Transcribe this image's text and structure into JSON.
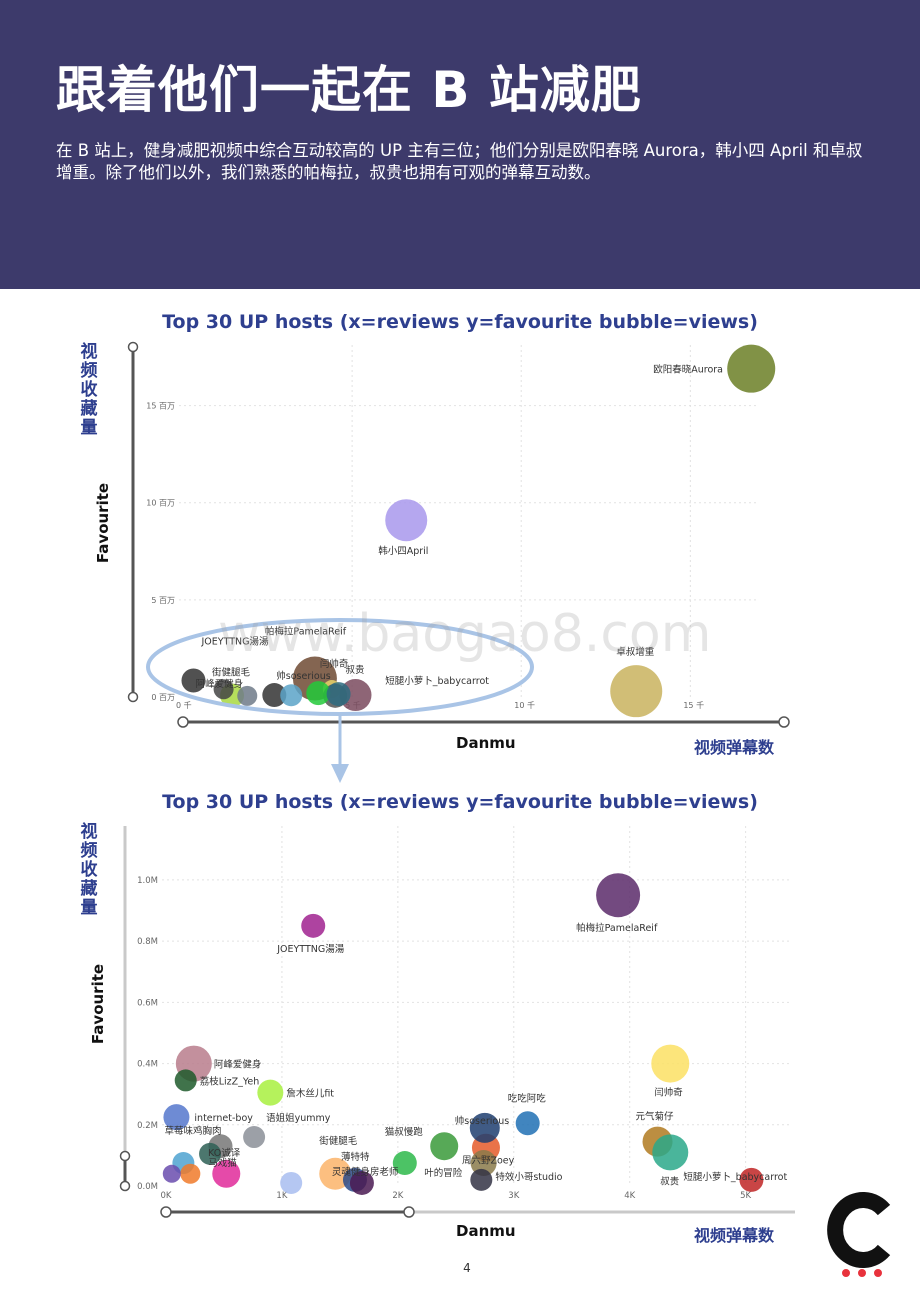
{
  "header": {
    "title": "跟着他们一起在 B 站减肥",
    "intro": "在 B 站上，健身减肥视频中综合互动较高的 UP 主有三位；他们分别是欧阳春晓 Aurora，韩小四 April 和卓叔增重。除了他们以外，我们熟悉的帕梅拉，叔贵也拥有可观的弹幕互动数。"
  },
  "watermark": "www.baogao8.com",
  "page_number": "4",
  "colors": {
    "header_bg": "#3d3a6b",
    "title_blue": "#2e3f8f",
    "callout": "#a9c4e6",
    "logo_dots": "#e8323c"
  },
  "chart_data": [
    {
      "type": "scatter",
      "title": "Top 30 UP hosts (x=reviews y=favourite bubble=views)",
      "xlabel": "Danmu",
      "xlabel_cn": "视频弹幕数",
      "ylabel": "Favourite",
      "ylabel_cn": "视频收藏量",
      "xlim": [
        0,
        17000
      ],
      "ylim": [
        0,
        17500000
      ],
      "xticks": [
        {
          "v": 0,
          "label": "0 千"
        },
        {
          "v": 5000,
          "label": "5 千"
        },
        {
          "v": 10000,
          "label": "10 千"
        },
        {
          "v": 15000,
          "label": "15 千"
        }
      ],
      "yticks": [
        {
          "v": 0,
          "label": "0 百万"
        },
        {
          "v": 5000000,
          "label": "5 百万"
        },
        {
          "v": 10000000,
          "label": "10 百万"
        },
        {
          "v": 15000000,
          "label": "15 百万"
        }
      ],
      "points": [
        {
          "name": "欧阳春晓Aurora",
          "x": 16800,
          "y": 16900000,
          "r": 24,
          "color": "#6b7f26",
          "lx": -98,
          "ly": 4
        },
        {
          "name": "韩小四April",
          "x": 6600,
          "y": 9100000,
          "r": 21,
          "color": "#a898ec",
          "lx": -28,
          "ly": 34
        },
        {
          "name": "卓叔增重",
          "x": 13400,
          "y": 300000,
          "r": 26,
          "color": "#c9b35e",
          "lx": -20,
          "ly": -36
        },
        {
          "name": "帕梅拉PamelaReif",
          "x": 3900,
          "y": 950000,
          "r": 22,
          "color": "#6e4a33",
          "lx": -50,
          "ly": -44
        },
        {
          "name": "闫帅奇",
          "x": 4400,
          "y": 410000,
          "r": 9,
          "color": "#e6d26a",
          "lx": -12,
          "ly": -22
        },
        {
          "name": "叔贵",
          "x": 5100,
          "y": 100000,
          "r": 16,
          "color": "#7a4a5e",
          "lx": -10,
          "ly": -22
        },
        {
          "name": "短腿小萝卜_babycarrot",
          "x": 4500,
          "y": 60000,
          "r": 12,
          "color": "#555555",
          "lx": 50,
          "ly": -12
        },
        {
          "name": "帅soserious",
          "x": 4000,
          "y": 200000,
          "r": 12,
          "color": "#22c93a",
          "lx": -42,
          "ly": -14
        },
        {
          "name": "JOEYTTNG湯湯",
          "x": 310,
          "y": 850000,
          "r": 12,
          "color": "#333333",
          "lx": 8,
          "ly": -36
        },
        {
          "name": "街健腿毛",
          "x": 1450,
          "y": 80000,
          "r": 12,
          "color": "#a8d840",
          "lx": -20,
          "ly": -20
        },
        {
          "name": "阿峰爱健身",
          "x": 1200,
          "y": 400000,
          "r": 10,
          "color": "#444444",
          "lx": -28,
          "ly": -2
        },
        {
          "name": "",
          "x": 2700,
          "y": 100000,
          "r": 12,
          "color": "#333333",
          "lx": 0,
          "ly": 0
        },
        {
          "name": "",
          "x": 4600,
          "y": 150000,
          "r": 12,
          "color": "#2e6b80",
          "lx": 0,
          "ly": 0
        },
        {
          "name": "",
          "x": 1900,
          "y": 60000,
          "r": 10,
          "color": "#6f7a88",
          "lx": 0,
          "ly": 0
        },
        {
          "name": "",
          "x": 3200,
          "y": 90000,
          "r": 11,
          "color": "#5ba3c8",
          "lx": 0,
          "ly": 0
        }
      ]
    },
    {
      "type": "scatter",
      "title": "Top 30 UP hosts (x=reviews y=favourite bubble=views)",
      "xlabel": "Danmu",
      "xlabel_cn": "视频弹幕数",
      "ylabel": "Favourite",
      "ylabel_cn": "视频收藏量",
      "xlim": [
        0,
        5400
      ],
      "ylim": [
        0,
        1150000
      ],
      "xticks": [
        {
          "v": 0,
          "label": "0K"
        },
        {
          "v": 1000,
          "label": "1K"
        },
        {
          "v": 2000,
          "label": "2K"
        },
        {
          "v": 3000,
          "label": "3K"
        },
        {
          "v": 4000,
          "label": "4K"
        },
        {
          "v": 5000,
          "label": "5K"
        }
      ],
      "yticks": [
        {
          "v": 0,
          "label": "0.0M"
        },
        {
          "v": 200000,
          "label": "0.2M"
        },
        {
          "v": 400000,
          "label": "0.4M"
        },
        {
          "v": 600000,
          "label": "0.6M"
        },
        {
          "v": 800000,
          "label": "0.8M"
        },
        {
          "v": 1000000,
          "label": "1.0M"
        }
      ],
      "points": [
        {
          "name": "帕梅拉PamelaReif",
          "x": 3900,
          "y": 950000,
          "r": 22,
          "color": "#5a2a6a",
          "lx": -42,
          "ly": 36
        },
        {
          "name": "JOEYTTNG湯湯",
          "x": 1270,
          "y": 850000,
          "r": 12,
          "color": "#a0228f",
          "lx": -36,
          "ly": 26
        },
        {
          "name": "闫帅奇",
          "x": 4350,
          "y": 400000,
          "r": 19,
          "color": "#fbe064",
          "lx": -16,
          "ly": 32
        },
        {
          "name": "阿峰爱健身",
          "x": 240,
          "y": 400000,
          "r": 18,
          "color": "#b97c8c",
          "lx": 20,
          "ly": 4
        },
        {
          "name": "荔枝LizZ_Yeh",
          "x": 170,
          "y": 345000,
          "r": 11,
          "color": "#1f5a2c",
          "lx": 14,
          "ly": 4
        },
        {
          "name": "詹木丝儿fit",
          "x": 900,
          "y": 305000,
          "r": 13,
          "color": "#a8f040",
          "lx": 16,
          "ly": 4
        },
        {
          "name": "internet-boy",
          "x": 90,
          "y": 225000,
          "r": 13,
          "color": "#5577cc",
          "lx": 18,
          "ly": 4
        },
        {
          "name": "语姐姐yummy",
          "x": 760,
          "y": 160000,
          "r": 11,
          "color": "#8b8f98",
          "lx": 12,
          "ly": -16
        },
        {
          "name": "草莓味鸡胸肉",
          "x": 470,
          "y": 130000,
          "r": 12,
          "color": "#777777",
          "lx": -56,
          "ly": -12
        },
        {
          "name": "KO诚译",
          "x": 380,
          "y": 105000,
          "r": 11,
          "color": "#2d5f55",
          "lx": -2,
          "ly": 2
        },
        {
          "name": "马戏猫",
          "x": 520,
          "y": 40000,
          "r": 14,
          "color": "#e02a9a",
          "lx": -18,
          "ly": -8
        },
        {
          "name": "",
          "x": 150,
          "y": 75000,
          "r": 11,
          "color": "#4ea2d0",
          "lx": 0,
          "ly": 0
        },
        {
          "name": "",
          "x": 210,
          "y": 40000,
          "r": 10,
          "color": "#f07a2a",
          "lx": 0,
          "ly": 0
        },
        {
          "name": "",
          "x": 50,
          "y": 40000,
          "r": 9,
          "color": "#6a4cae",
          "lx": 0,
          "ly": 0
        },
        {
          "name": "",
          "x": 1080,
          "y": 10000,
          "r": 11,
          "color": "#a8bdf0",
          "lx": 0,
          "ly": 0
        },
        {
          "name": "街健腿毛",
          "x": 1460,
          "y": 40000,
          "r": 16,
          "color": "#fbb46a",
          "lx": -16,
          "ly": -30
        },
        {
          "name": "薄特特",
          "x": 1630,
          "y": 20000,
          "r": 12,
          "color": "#2a4a8a",
          "lx": -14,
          "ly": -20
        },
        {
          "name": "灵魂健身房老师",
          "x": 1690,
          "y": 10000,
          "r": 12,
          "color": "#4a1a52",
          "lx": -30,
          "ly": -8
        },
        {
          "name": "猫叔慢跑",
          "x": 2060,
          "y": 75000,
          "r": 12,
          "color": "#2db84a",
          "lx": -20,
          "ly": -28
        },
        {
          "name": "叶的冒险",
          "x": 2400,
          "y": 130000,
          "r": 14,
          "color": "#3a9a3a",
          "lx": -20,
          "ly": 30
        },
        {
          "name": "周六野Zoey",
          "x": 2760,
          "y": 125000,
          "r": 14,
          "color": "#e55a2a",
          "lx": -24,
          "ly": 16
        },
        {
          "name": "帅soserious",
          "x": 2750,
          "y": 190000,
          "r": 15,
          "color": "#1e3e70",
          "lx": -30,
          "ly": -4
        },
        {
          "name": "",
          "x": 2740,
          "y": 75000,
          "r": 13,
          "color": "#8a7a4a",
          "lx": 0,
          "ly": 0
        },
        {
          "name": "特效小哥studio",
          "x": 2720,
          "y": 20000,
          "r": 11,
          "color": "#333344",
          "lx": 14,
          "ly": 0
        },
        {
          "name": "吃吃阿吃",
          "x": 3120,
          "y": 205000,
          "r": 12,
          "color": "#2070b4",
          "lx": -20,
          "ly": -22
        },
        {
          "name": "元气菊仔",
          "x": 4240,
          "y": 145000,
          "r": 15,
          "color": "#b07a20",
          "lx": -22,
          "ly": -22
        },
        {
          "name": "叔贵",
          "x": 4350,
          "y": 110000,
          "r": 18,
          "color": "#2aa88a",
          "lx": -10,
          "ly": 32
        },
        {
          "name": "短腿小萝卜_babycarrot",
          "x": 5050,
          "y": 20000,
          "r": 12,
          "color": "#c02424",
          "lx": -68,
          "ly": 0
        }
      ]
    }
  ]
}
